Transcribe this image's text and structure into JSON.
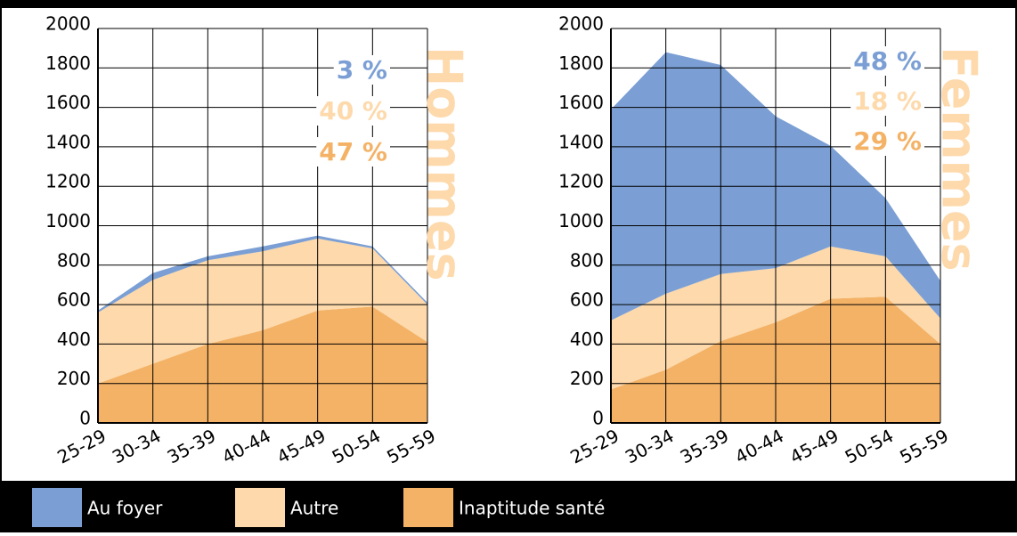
{
  "chart_data": [
    {
      "type": "area",
      "stacked": true,
      "side_label": "Hommes",
      "categories": [
        "25-29",
        "30-34",
        "35-39",
        "40-44",
        "45-49",
        "50-54",
        "55-59"
      ],
      "ylim": [
        0,
        2000
      ],
      "yticks": [
        0,
        200,
        400,
        600,
        800,
        1000,
        1200,
        1400,
        1600,
        1800,
        2000
      ],
      "grid": true,
      "series": [
        {
          "name": "Inaptitude santé",
          "color": "#f4b266",
          "values": [
            200,
            300,
            400,
            470,
            570,
            590,
            410
          ]
        },
        {
          "name": "Autre",
          "color": "#fdd9ab",
          "values": [
            360,
            425,
            425,
            400,
            365,
            295,
            190
          ]
        },
        {
          "name": "Au foyer",
          "color": "#7b9fd4",
          "values": [
            10,
            35,
            20,
            25,
            15,
            10,
            10
          ]
        }
      ],
      "annotations": [
        {
          "text": "3 %",
          "color": "#7b9fd4"
        },
        {
          "text": "40 %",
          "color": "#fdd9ab"
        },
        {
          "text": "47 %",
          "color": "#f4b266"
        }
      ]
    },
    {
      "type": "area",
      "stacked": true,
      "side_label": "Femmes",
      "categories": [
        "25-29",
        "30-34",
        "35-39",
        "40-44",
        "45-49",
        "50-54",
        "55-59"
      ],
      "ylim": [
        0,
        2000
      ],
      "yticks": [
        0,
        200,
        400,
        600,
        800,
        1000,
        1200,
        1400,
        1600,
        1800,
        2000
      ],
      "grid": true,
      "series": [
        {
          "name": "Inaptitude santé",
          "color": "#f4b266",
          "values": [
            170,
            270,
            415,
            510,
            630,
            640,
            400
          ]
        },
        {
          "name": "Autre",
          "color": "#fdd9ab",
          "values": [
            350,
            385,
            340,
            275,
            265,
            205,
            130
          ]
        },
        {
          "name": "Au foyer",
          "color": "#7b9fd4",
          "values": [
            1070,
            1225,
            1060,
            770,
            510,
            295,
            190
          ]
        }
      ],
      "annotations": [
        {
          "text": "48 %",
          "color": "#7b9fd4"
        },
        {
          "text": "18 %",
          "color": "#fdd9ab"
        },
        {
          "text": "29 %",
          "color": "#f4b266"
        }
      ]
    }
  ]
}
